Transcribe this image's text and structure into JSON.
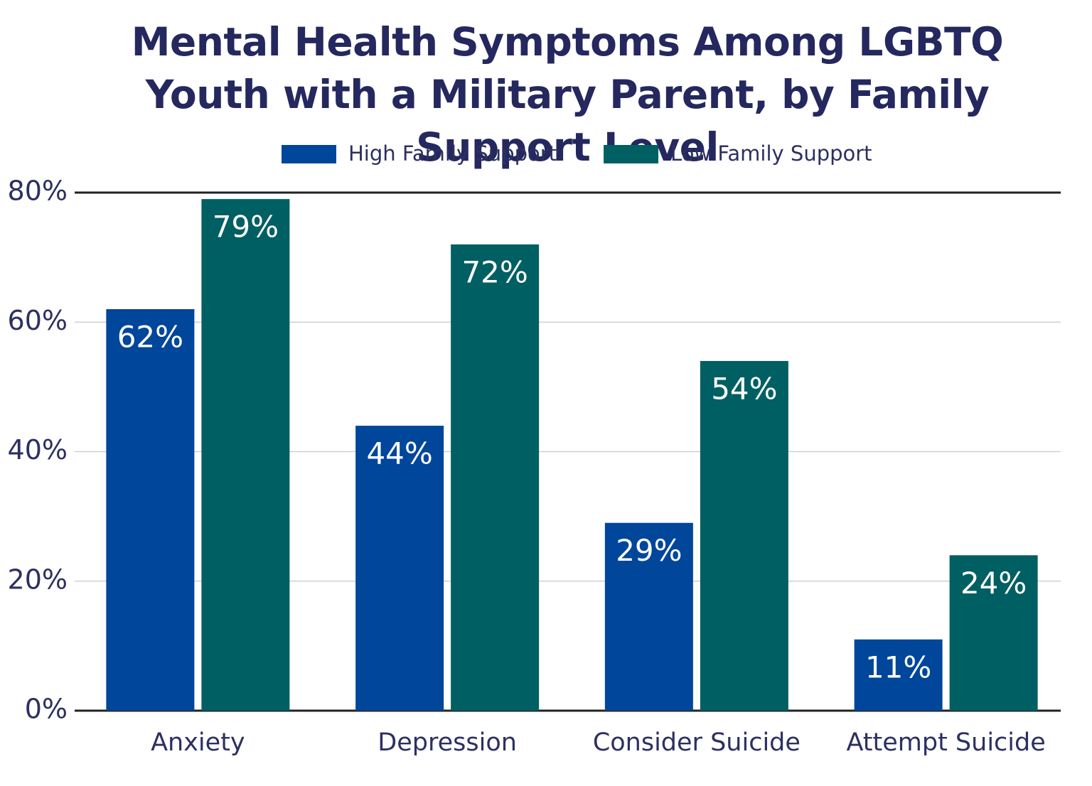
{
  "chart_data": {
    "type": "bar",
    "title": "Mental Health Symptoms Among LGBTQ Youth with a Military Parent, by Family Support Level",
    "categories": [
      "Anxiety",
      "Depression",
      "Consider Suicide",
      "Attempt Suicide"
    ],
    "series": [
      {
        "name": "High Family Support",
        "color": "#00469b",
        "values": [
          62,
          44,
          29,
          11
        ],
        "value_labels": [
          "62%",
          "44%",
          "29%",
          "11%"
        ]
      },
      {
        "name": "Low Family Support",
        "color": "#005f63",
        "values": [
          79,
          72,
          54,
          24
        ],
        "value_labels": [
          "79%",
          "72%",
          "54%",
          "24%"
        ]
      }
    ],
    "ylim": [
      0,
      80
    ],
    "yticks": [
      {
        "value": 0,
        "label": "0%"
      },
      {
        "value": 20,
        "label": "20%"
      },
      {
        "value": 40,
        "label": "40%"
      },
      {
        "value": 60,
        "label": "60%"
      },
      {
        "value": 80,
        "label": "80%"
      }
    ],
    "grid": true,
    "legend": "top"
  }
}
